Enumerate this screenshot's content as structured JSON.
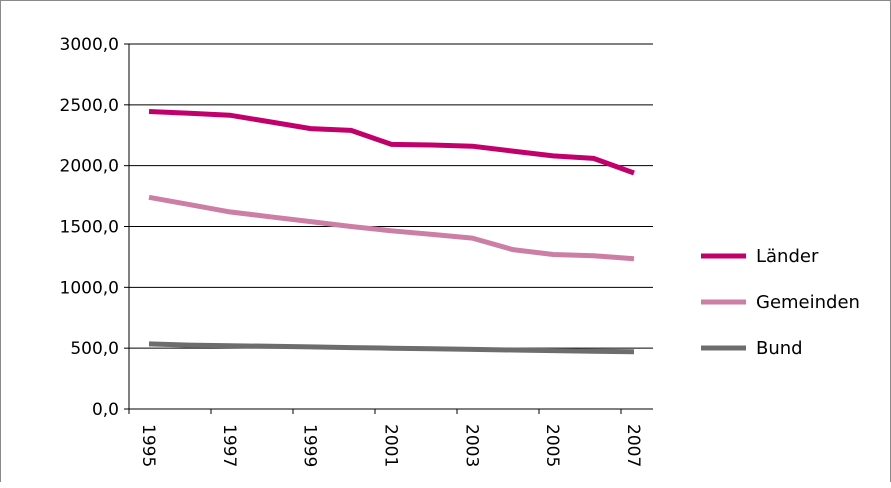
{
  "chart_data": {
    "type": "line",
    "title": "",
    "xlabel": "",
    "ylabel": "",
    "ylim": [
      0,
      3000
    ],
    "yticks": [
      "3000,0",
      "2500,0",
      "2000,0",
      "1500,0",
      "1000,0",
      "500,0",
      "0,0"
    ],
    "x_tick_labels": [
      "1995",
      "1997",
      "1999",
      "2001",
      "2003",
      "2005",
      "2007"
    ],
    "x": [
      1995,
      1996,
      1997,
      1998,
      1999,
      2000,
      2001,
      2002,
      2003,
      2004,
      2005,
      2006,
      2007
    ],
    "grid": "horizontal",
    "legend_position": "right",
    "series": [
      {
        "name": "Länder",
        "color": "#c2006b",
        "values": [
          2445,
          2430,
          2415,
          2360,
          2305,
          2290,
          2175,
          2170,
          2160,
          2120,
          2080,
          2060,
          1940
        ]
      },
      {
        "name": "Gemeinden",
        "color": "#cc7ea4",
        "values": [
          1740,
          1680,
          1620,
          1580,
          1540,
          1500,
          1465,
          1435,
          1405,
          1310,
          1270,
          1260,
          1235
        ]
      },
      {
        "name": "Bund",
        "color": "#6d6d6d",
        "values": [
          535,
          525,
          520,
          515,
          510,
          505,
          500,
          495,
          490,
          485,
          480,
          475,
          470
        ]
      }
    ]
  }
}
